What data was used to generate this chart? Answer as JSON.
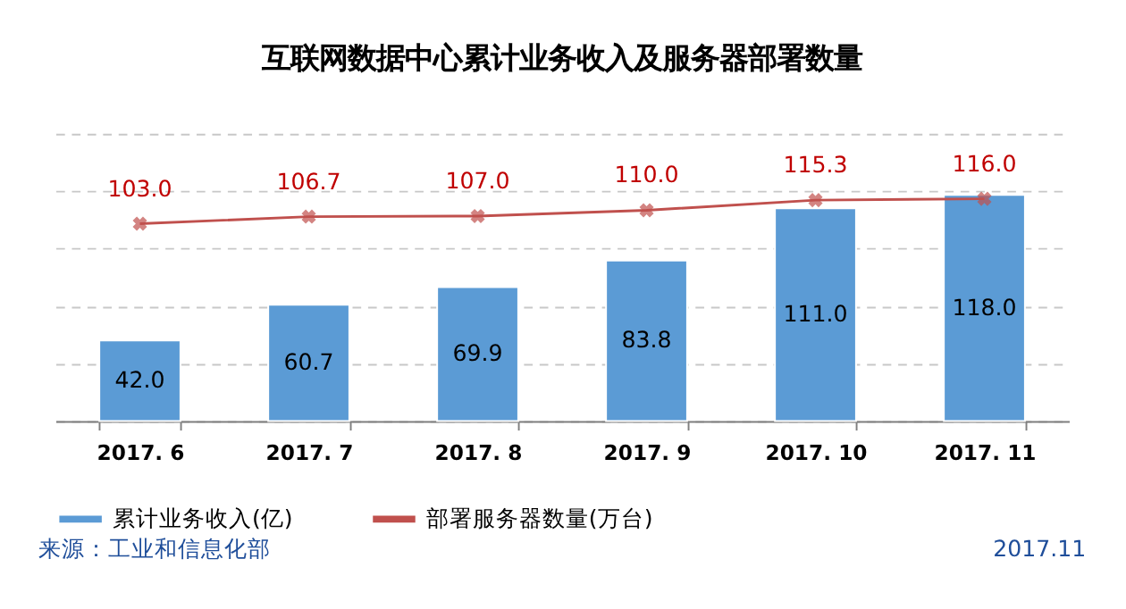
{
  "chart_data": {
    "type": "bar",
    "title": "互联网数据中心累计业务收入及服务器部署数量",
    "categories": [
      "2017. 6",
      "2017. 7",
      "2017. 8",
      "2017. 9",
      "2017. 10",
      "2017. 11"
    ],
    "series": [
      {
        "name": "累计业务收入(亿)",
        "color": "#5b9bd5",
        "values": [
          42.0,
          60.7,
          69.9,
          83.8,
          111.0,
          118.0
        ],
        "value_labels": [
          "42.0",
          "60.7",
          "69.9",
          "83.8",
          "111.0",
          "118.0"
        ]
      },
      {
        "name": "部署服务器数量(万台)",
        "type": "line",
        "color": "#c0504d",
        "marker": "cross",
        "values": [
          103.0,
          106.7,
          107.0,
          110.0,
          115.3,
          116.0
        ],
        "value_labels": [
          "103.0",
          "106.7",
          "107.0",
          "110.0",
          "115.3",
          "116.0"
        ]
      }
    ],
    "ylim": [
      0,
      150
    ],
    "yticks": [
      0,
      30,
      60,
      90,
      120,
      150
    ],
    "tick_labels": "x",
    "grid": "y",
    "legend": "bottom",
    "annotations": [
      "来源：工业和信息化部",
      "2017.11"
    ]
  }
}
